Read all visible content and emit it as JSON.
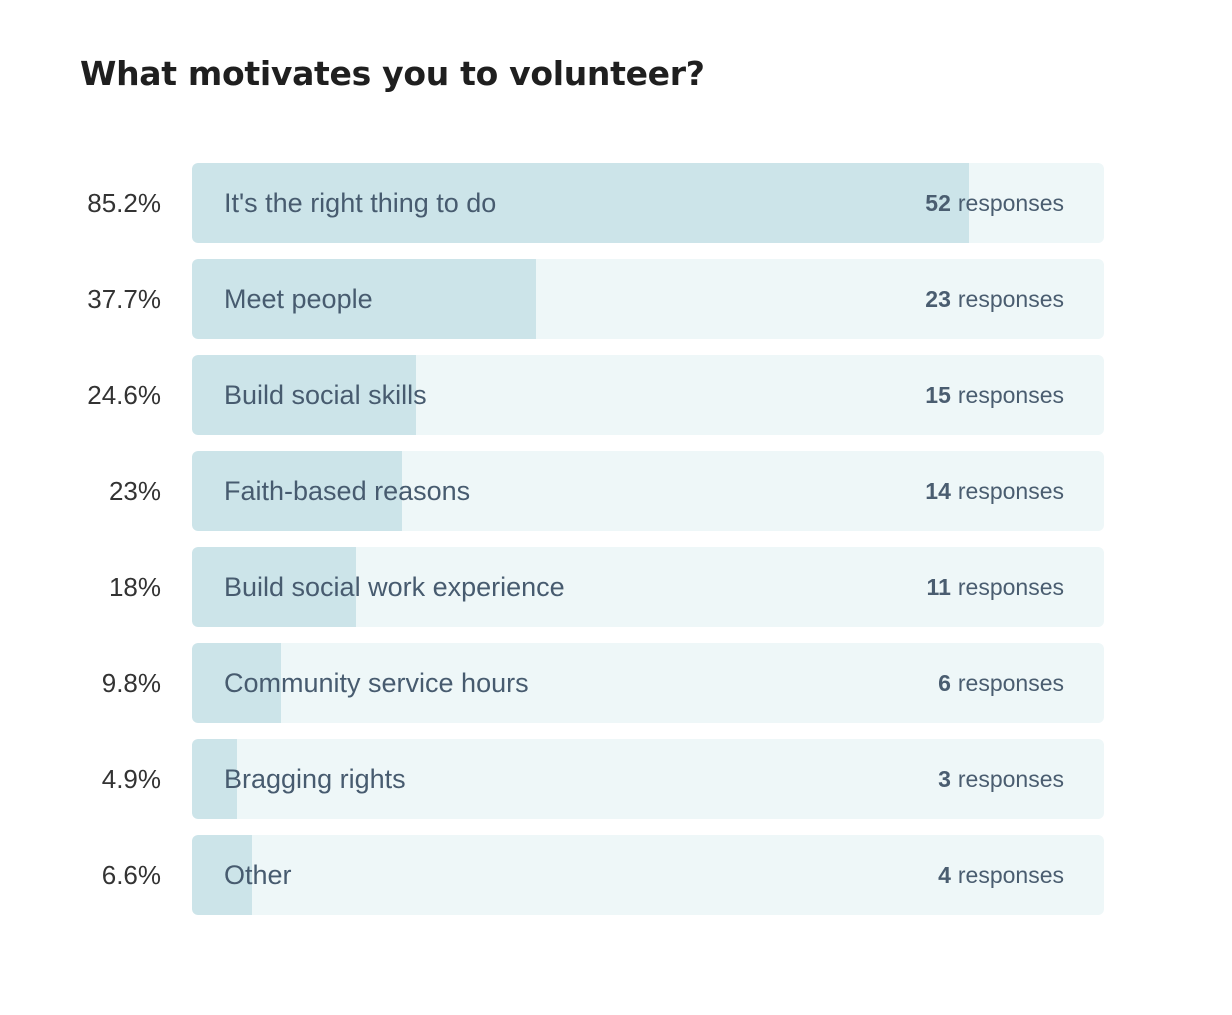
{
  "title": "What motivates you to volunteer?",
  "response_word": "responses",
  "colors": {
    "track": "#eef7f8",
    "fill": "#cce4e9",
    "label": "#475b6f",
    "title": "#1f1f1f"
  },
  "rows": [
    {
      "percent_label": "85.2%",
      "label": "It's the right thing to do",
      "count": "52"
    },
    {
      "percent_label": "37.7%",
      "label": "Meet people",
      "count": "23"
    },
    {
      "percent_label": "24.6%",
      "label": "Build social skills",
      "count": "15"
    },
    {
      "percent_label": "23%",
      "label": "Faith-based reasons",
      "count": "14"
    },
    {
      "percent_label": "18%",
      "label": "Build social work experience",
      "count": "11"
    },
    {
      "percent_label": "9.8%",
      "label": "Community service hours",
      "count": "6"
    },
    {
      "percent_label": "4.9%",
      "label": "Bragging rights",
      "count": "3"
    },
    {
      "percent_label": "6.6%",
      "label": "Other",
      "count": "4"
    }
  ],
  "chart_data": {
    "type": "bar",
    "orientation": "horizontal",
    "title": "What motivates you to volunteer?",
    "categories": [
      "It's the right thing to do",
      "Meet people",
      "Build social skills",
      "Faith-based reasons",
      "Build social work experience",
      "Community service hours",
      "Bragging rights",
      "Other"
    ],
    "values": [
      85.2,
      37.7,
      24.6,
      23,
      18,
      9.8,
      4.9,
      6.6
    ],
    "counts": [
      52,
      23,
      15,
      14,
      11,
      6,
      3,
      4
    ],
    "xlim": [
      0,
      100
    ]
  }
}
